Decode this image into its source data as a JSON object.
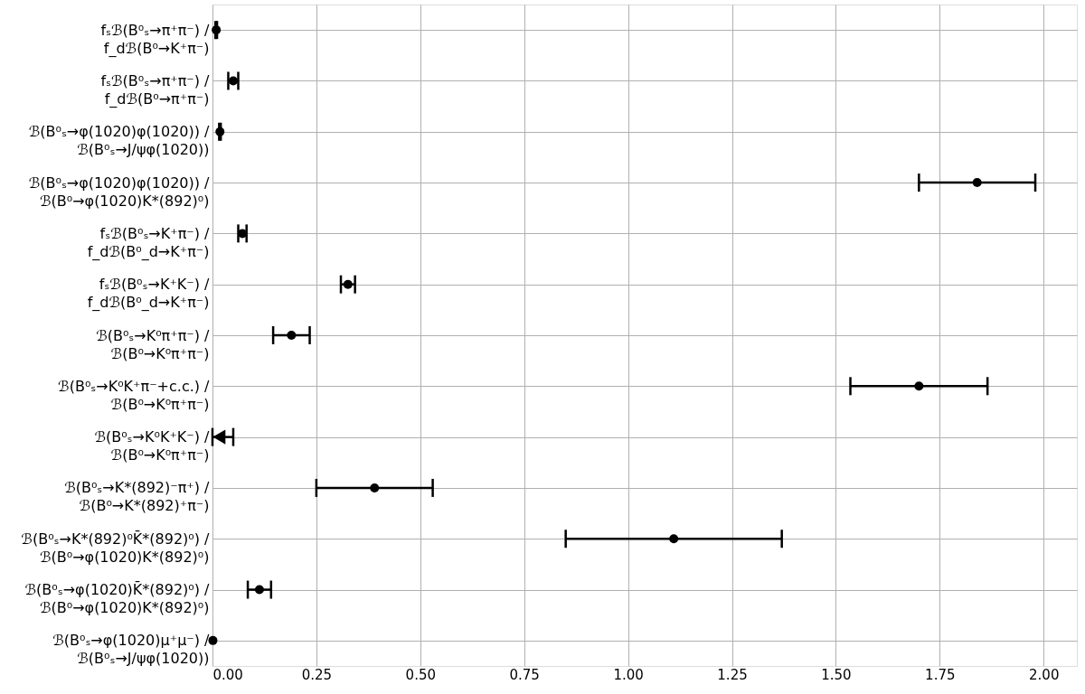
{
  "chart_data": {
    "type": "scatter",
    "orientation": "horizontal",
    "categories": [
      "fₛℬ(B⁰ₛ→π⁺π⁻) / f_dℬ(B⁰→K⁺π⁻)",
      "fₛℬ(B⁰ₛ→π⁺π⁻) / f_dℬ(B⁰→π⁺π⁻)",
      "ℬ(B⁰ₛ→φ(1020)φ(1020)) / ℬ(B⁰ₛ→J/ψφ(1020))",
      "ℬ(B⁰ₛ→φ(1020)φ(1020)) / ℬ(B⁰→φ(1020)K*(892)⁰)",
      "fₛℬ(B⁰ₛ→K⁺π⁻) / f_dℬ(B⁰_d→K⁺π⁻)",
      "fₛℬ(B⁰ₛ→K⁺K⁻) / f_dℬ(B⁰_d→K⁺π⁻)",
      "ℬ(B⁰ₛ→K⁰π⁺π⁻) / ℬ(B⁰→K⁰π⁺π⁻)",
      "ℬ(B⁰ₛ→K⁰K⁺π⁻+c.c.) / ℬ(B⁰→K⁰π⁺π⁻)",
      "ℬ(B⁰ₛ→K⁰K⁺K⁻) / ℬ(B⁰→K⁰π⁺π⁻)",
      "ℬ(B⁰ₛ→K*(892)⁻π⁺) / ℬ(B⁰→K*(892)⁺π⁻)",
      "ℬ(B⁰ₛ→K*(892)⁰K̄*(892)⁰) / ℬ(B⁰→φ(1020)K*(892)⁰)",
      "ℬ(B⁰ₛ→φ(1020)K̄*(892)⁰) / ℬ(B⁰→φ(1020)K*(892)⁰)",
      "ℬ(B⁰ₛ→φ(1020)μ⁺μ⁻) / ℬ(B⁰ₛ→J/ψφ(1020))"
    ],
    "series": [
      {
        "color": "#000000",
        "marker": "circle",
        "values": [
          0.009,
          0.05,
          0.018,
          1.84,
          0.072,
          0.326,
          0.19,
          1.7,
          null,
          0.39,
          1.11,
          0.113,
          0.001
        ],
        "errors": [
          0.002,
          0.012,
          0.002,
          0.14,
          0.01,
          0.017,
          0.044,
          0.165,
          null,
          0.14,
          0.26,
          0.028,
          null
        ]
      },
      {
        "color": "#000000",
        "marker": "triangle",
        "values": [
          null,
          null,
          null,
          null,
          null,
          null,
          null,
          null,
          0.016,
          null,
          null,
          null,
          null
        ],
        "errors": [
          null,
          null,
          null,
          null,
          null,
          null,
          null,
          null,
          [
            0,
            0.05
          ],
          null,
          null,
          null,
          null
        ]
      }
    ],
    "xlim": [
      0,
      2.08
    ],
    "xticks": [
      {
        "value": 0,
        "label": "0.00"
      },
      {
        "value": 0.25,
        "label": "0.25"
      },
      {
        "value": 0.5,
        "label": "0.50"
      },
      {
        "value": 0.75,
        "label": "0.75"
      },
      {
        "value": 1,
        "label": "1.00"
      },
      {
        "value": 1.25,
        "label": "1.25"
      },
      {
        "value": 1.5,
        "label": "1.50"
      },
      {
        "value": 1.75,
        "label": "1.75"
      },
      {
        "value": 2,
        "label": "2.00"
      }
    ],
    "grid": true
  }
}
